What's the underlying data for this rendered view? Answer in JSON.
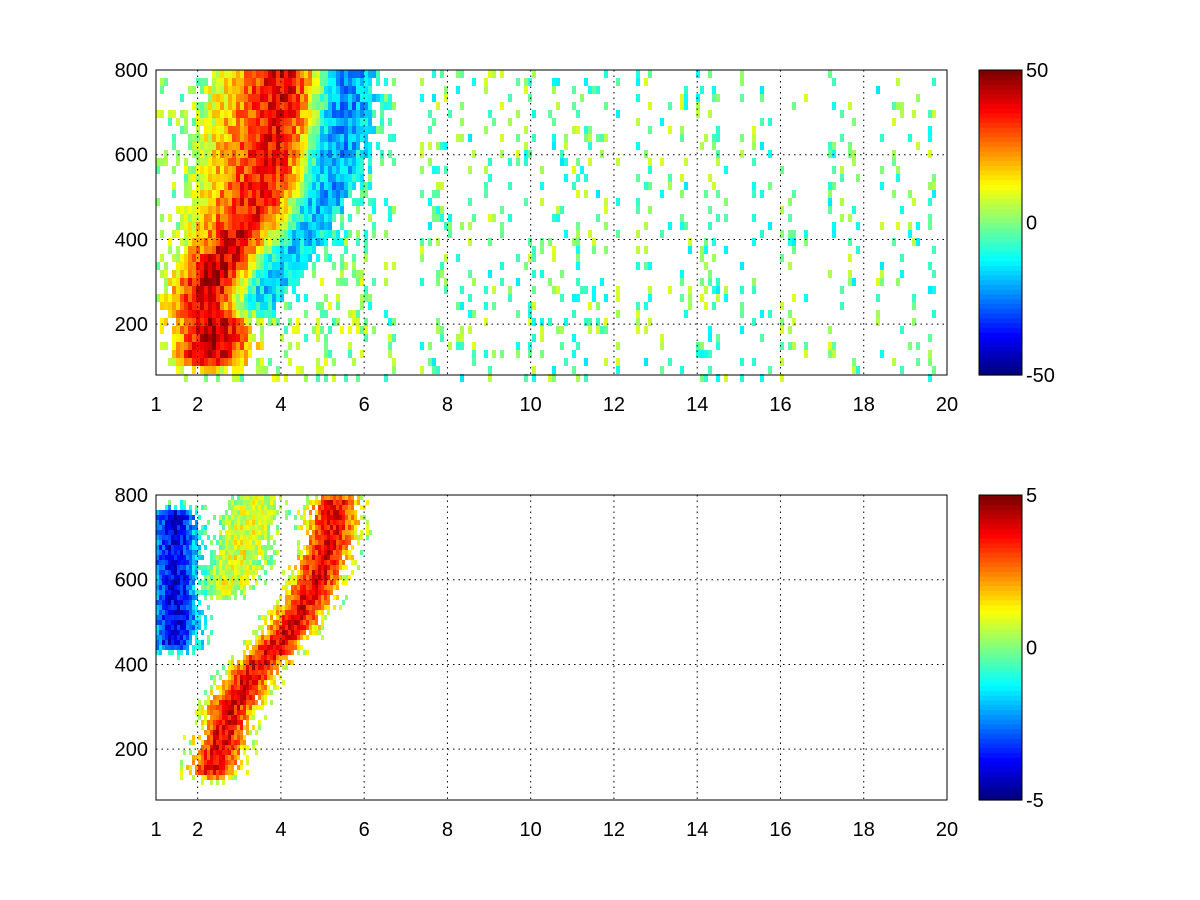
{
  "chart_data": [
    {
      "type": "heatmap",
      "title": "",
      "xlabel": "",
      "ylabel": "",
      "xlim": [
        1,
        20
      ],
      "ylim": [
        80,
        800
      ],
      "grid": true,
      "colormap": "jet",
      "x_ticks": [
        1,
        2,
        4,
        6,
        8,
        10,
        12,
        14,
        16,
        18,
        20
      ],
      "x_tick_labels": [
        "1",
        "2",
        "4",
        "6",
        "8",
        "10",
        "12",
        "14",
        "16",
        "18",
        "20"
      ],
      "y_ticks": [
        200,
        400,
        600,
        800
      ],
      "y_tick_labels": [
        "200",
        "400",
        "600",
        "800"
      ],
      "colorbar": {
        "clim": [
          -50,
          50
        ],
        "ticks": [
          -50,
          0,
          50
        ],
        "tick_labels": [
          "-50",
          "0",
          "50"
        ]
      },
      "features": [
        {
          "description": "positive ridge",
          "points": [
            [
              2.3,
              130
            ],
            [
              2.6,
              290
            ],
            [
              3.2,
              370
            ],
            [
              3.8,
              450
            ],
            [
              4.2,
              560
            ],
            [
              4.4,
              700
            ],
            [
              4.5,
              800
            ]
          ],
          "peak_value": 45
        },
        {
          "description": "negative ridge",
          "points": [
            [
              3.0,
              250
            ],
            [
              3.6,
              350
            ],
            [
              4.2,
              420
            ],
            [
              4.7,
              500
            ],
            [
              5.0,
              600
            ],
            [
              5.2,
              700
            ],
            [
              5.3,
              800
            ]
          ],
          "peak_value": -40
        },
        {
          "description": "secondary positive ridge",
          "points": [
            [
              2.2,
              250
            ],
            [
              2.6,
              400
            ],
            [
              3.0,
              620
            ],
            [
              3.3,
              800
            ]
          ],
          "peak_value": 20
        }
      ],
      "noise_region_x": [
        6,
        20
      ],
      "noise_value_range": [
        -15,
        10
      ]
    },
    {
      "type": "heatmap",
      "title": "",
      "xlabel": "",
      "ylabel": "",
      "xlim": [
        1,
        20
      ],
      "ylim": [
        80,
        800
      ],
      "grid": true,
      "colormap": "jet",
      "x_ticks": [
        1,
        2,
        4,
        6,
        8,
        10,
        12,
        14,
        16,
        18,
        20
      ],
      "x_tick_labels": [
        "1",
        "2",
        "4",
        "6",
        "8",
        "10",
        "12",
        "14",
        "16",
        "18",
        "20"
      ],
      "y_ticks": [
        200,
        400,
        600,
        800
      ],
      "y_tick_labels": [
        "200",
        "400",
        "600",
        "800"
      ],
      "colorbar": {
        "clim": [
          -5,
          5
        ],
        "ticks": [
          -5,
          0,
          5
        ],
        "tick_labels": [
          "-5",
          "0",
          "5"
        ]
      },
      "features": [
        {
          "description": "main band",
          "points": [
            [
              2.4,
              150
            ],
            [
              2.8,
              300
            ],
            [
              3.5,
              400
            ],
            [
              4.2,
              480
            ],
            [
              4.8,
              580
            ],
            [
              5.2,
              700
            ],
            [
              5.3,
              780
            ]
          ],
          "peak_value": 4
        },
        {
          "description": "upper streak",
          "points": [
            [
              2.6,
              580
            ],
            [
              3.0,
              650
            ],
            [
              3.4,
              780
            ]
          ],
          "peak_value": 1
        },
        {
          "description": "isolated stripe",
          "points": [
            [
              1.45,
              450
            ],
            [
              1.45,
              750
            ]
          ],
          "peak_value": -4
        }
      ],
      "noise_region_x": [],
      "noise_value_range": [
        0,
        0
      ]
    }
  ]
}
